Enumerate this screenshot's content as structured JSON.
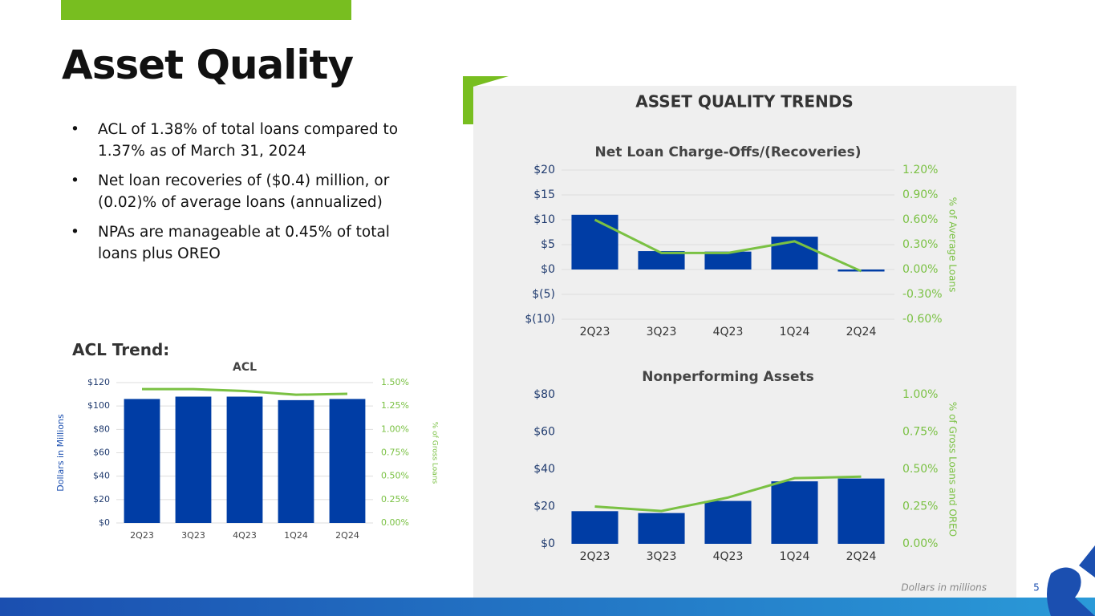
{
  "slide": {
    "title": "Asset Quality",
    "bullets": [
      "ACL of 1.38% of total loans compared to 1.37% as of March 31, 2024",
      "Net loan recoveries of ($0.4) million, or (0.02)% of average loans (annualized)",
      "NPAs are manageable at 0.45% of total loans plus OREO"
    ],
    "acl_heading": "ACL Trend:",
    "panel_title": "ASSET QUALITY TRENDS",
    "footnote": "Dollars in millions",
    "page_number": "5"
  },
  "chart_data": [
    {
      "type": "bar",
      "title": "ACL",
      "y_label": "Dollars in Millions",
      "y2_label": "% of Gross Loans",
      "categories": [
        "2Q23",
        "3Q23",
        "4Q23",
        "1Q24",
        "2Q24"
      ],
      "series": [
        {
          "type": "bar",
          "color": "#003da5",
          "values": [
            106,
            108,
            108,
            105,
            106
          ]
        },
        {
          "type": "line",
          "color": "#7ac143",
          "axis": "y2",
          "values": [
            1.43,
            1.43,
            1.41,
            1.37,
            1.38
          ]
        }
      ],
      "ylim": [
        0,
        120
      ],
      "yticks": [
        {
          "value": 0,
          "label": "$0"
        },
        {
          "value": 20,
          "label": "$20"
        },
        {
          "value": 40,
          "label": "$40"
        },
        {
          "value": 60,
          "label": "$60"
        },
        {
          "value": 80,
          "label": "$80"
        },
        {
          "value": 100,
          "label": "$100"
        },
        {
          "value": 120,
          "label": "$120"
        }
      ],
      "y2lim": [
        0,
        1.5
      ],
      "y2ticks": [
        {
          "value": 0,
          "label": "0.00%"
        },
        {
          "value": 0.25,
          "label": "0.25%"
        },
        {
          "value": 0.5,
          "label": "0.50%"
        },
        {
          "value": 0.75,
          "label": "0.75%"
        },
        {
          "value": 1,
          "label": "1.00%"
        },
        {
          "value": 1.25,
          "label": "1.25%"
        },
        {
          "value": 1.5,
          "label": "1.50%"
        }
      ],
      "grid": true
    },
    {
      "type": "bar",
      "title": "Net Loan Charge-Offs/(Recoveries)",
      "y2_label": "% of Average Loans",
      "categories": [
        "2Q23",
        "3Q23",
        "4Q23",
        "1Q24",
        "2Q24"
      ],
      "series": [
        {
          "type": "bar",
          "color": "#003da5",
          "values": [
            11,
            3.7,
            3.6,
            6.6,
            -0.4
          ]
        },
        {
          "type": "line",
          "color": "#7ac143",
          "axis": "y2",
          "values": [
            0.6,
            0.2,
            0.2,
            0.34,
            -0.02
          ]
        }
      ],
      "ylim": [
        -10,
        20
      ],
      "yticks": [
        {
          "value": -10,
          "label": "$(10)"
        },
        {
          "value": -5,
          "label": "$(5)"
        },
        {
          "value": 0,
          "label": "$0"
        },
        {
          "value": 5,
          "label": "$5"
        },
        {
          "value": 10,
          "label": "$10"
        },
        {
          "value": 15,
          "label": "$15"
        },
        {
          "value": 20,
          "label": "$20"
        }
      ],
      "y2lim": [
        -0.6,
        1.2
      ],
      "y2ticks": [
        {
          "value": -0.6,
          "label": "-0.60%"
        },
        {
          "value": -0.3,
          "label": "-0.30%"
        },
        {
          "value": 0,
          "label": "0.00%"
        },
        {
          "value": 0.3,
          "label": "0.30%"
        },
        {
          "value": 0.6,
          "label": "0.60%"
        },
        {
          "value": 0.9,
          "label": "0.90%"
        },
        {
          "value": 1.2,
          "label": "1.20%"
        }
      ],
      "grid": true
    },
    {
      "type": "bar",
      "title": "Nonperforming Assets",
      "y2_label": "% of Gross Loans and OREO",
      "categories": [
        "2Q23",
        "3Q23",
        "4Q23",
        "1Q24",
        "2Q24"
      ],
      "series": [
        {
          "type": "bar",
          "color": "#003da5",
          "values": [
            17.5,
            16.5,
            23,
            33.5,
            35
          ]
        },
        {
          "type": "line",
          "color": "#7ac143",
          "axis": "y2",
          "values": [
            0.25,
            0.22,
            0.31,
            0.44,
            0.45
          ]
        }
      ],
      "ylim": [
        0,
        80
      ],
      "yticks": [
        {
          "value": 0,
          "label": "$0"
        },
        {
          "value": 20,
          "label": "$20"
        },
        {
          "value": 40,
          "label": "$40"
        },
        {
          "value": 60,
          "label": "$60"
        },
        {
          "value": 80,
          "label": "$80"
        }
      ],
      "y2lim": [
        0,
        1
      ],
      "y2ticks": [
        {
          "value": 0,
          "label": "0.00%"
        },
        {
          "value": 0.25,
          "label": "0.25%"
        },
        {
          "value": 0.5,
          "label": "0.50%"
        },
        {
          "value": 0.75,
          "label": "0.75%"
        },
        {
          "value": 1,
          "label": "1.00%"
        }
      ],
      "grid": false
    }
  ]
}
